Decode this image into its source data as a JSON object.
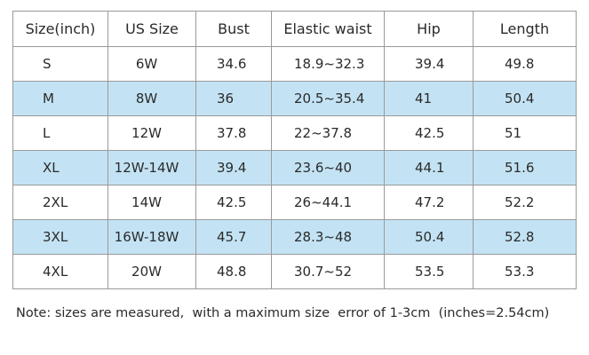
{
  "table": {
    "header": [
      "Size(inch)",
      "US Size",
      "Bust",
      "Elastic waist",
      "Hip",
      "Length"
    ],
    "rows": [
      [
        "S",
        "6W",
        "34.6",
        "18.9~32.3",
        "39.4",
        "49.8"
      ],
      [
        "M",
        "8W",
        "36",
        "20.5~35.4",
        "41",
        "50.4"
      ],
      [
        "L",
        "12W",
        "37.8",
        "22~37.8",
        "42.5",
        "51"
      ],
      [
        "XL",
        "12W-14W",
        "39.4",
        "23.6~40",
        "44.1",
        "51.6"
      ],
      [
        "2XL",
        "14W",
        "42.5",
        "26~44.1",
        "47.2",
        "52.2"
      ],
      [
        "3XL",
        "16W-18W",
        "45.7",
        "28.3~48",
        "50.4",
        "52.8"
      ],
      [
        "4XL",
        "20W",
        "48.8",
        "30.7~52",
        "53.5",
        "53.3"
      ]
    ]
  },
  "note": "Note: sizes are measured,  with a maximum size  error of 1-3cm  (inches=2.54cm)"
}
